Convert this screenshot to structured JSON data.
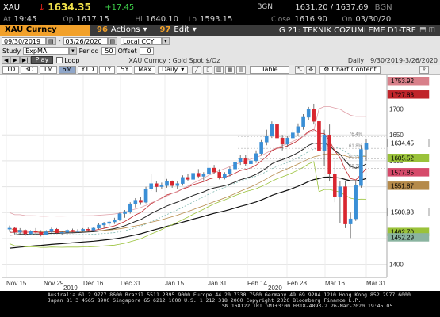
{
  "quote": {
    "symbol": "XAU",
    "arrow": "↓",
    "last": "1634.35",
    "change": "+17.45",
    "source": "BGN",
    "bid_ask": "1631.20 / 1637.69",
    "bid_ask_size": "BGN",
    "at_label": "At",
    "time": "19:45",
    "op_label": "Op",
    "open": "1617.15",
    "hi_label": "Hi",
    "high": "1640.10",
    "lo_label": "Lo",
    "low": "1593.15",
    "close_label": "Close",
    "close": "1616.90",
    "on_label": "On",
    "close_date": "03/30/20"
  },
  "menu": {
    "security": "XAU Curncy",
    "actions_num": "96",
    "actions_label": "Actions",
    "edit_num": "97",
    "edit_label": "Edit",
    "title": "G 21: TEKNIK COZUMLEME D1-TRE"
  },
  "toolbar1": {
    "start_date": "09/30/2019",
    "end_date": "03/26/2020",
    "currency": "Local CCY"
  },
  "toolbar2": {
    "study_label": "Study",
    "study_value": "ExpMA",
    "period_label": "Period",
    "period_value": "50",
    "offset_label": "Offset",
    "offset_value": "0"
  },
  "toolbar3": {
    "play_label": "Play",
    "loop_label": "Loop",
    "desc": "XAU Curncy : Gold Spot   $/Oz",
    "freq": "Daily",
    "range": "9/30/2019-3/26/2020"
  },
  "toolbar4": {
    "ranges": [
      "1D",
      "3D",
      "1M",
      "6M",
      "YTD",
      "1Y",
      "5Y",
      "Max"
    ],
    "selected": "6M",
    "period": "Daily",
    "table_label": "Table",
    "chart_content_label": "Chart Content"
  },
  "chart_data": {
    "type": "candlestick",
    "x_ticks": [
      "Nov 15",
      "Nov 29",
      "Dec 16",
      "Dec 31",
      "Jan 15",
      "Jan 31",
      "Feb 14",
      "Feb 28",
      "Mar 16",
      "Mar 31"
    ],
    "x_years": [
      "2019",
      "2020"
    ],
    "y_ticks": [
      1400,
      1450,
      1500,
      1550,
      1600,
      1650,
      1700
    ],
    "ylim": [
      1375,
      1765
    ],
    "price_labels": [
      {
        "value": 1753.92,
        "color": "#d8808a"
      },
      {
        "value": 1727.83,
        "color": "#c0242a"
      },
      {
        "value": 1634.45,
        "color": "#ffffff"
      },
      {
        "value": 1605.52,
        "color": "#9ac23a"
      },
      {
        "value": 1577.85,
        "color": "#d64a6a"
      },
      {
        "value": 1551.87,
        "color": "#b58a4a"
      },
      {
        "value": 1500.98,
        "color": "#ffffff"
      },
      {
        "value": 1462.7,
        "color": "#9ac23a"
      },
      {
        "value": 1452.29,
        "color": "#8ab4a0"
      }
    ],
    "fib_labels": [
      "76.4%",
      "61.8%",
      "50.0%",
      "38.2%"
    ],
    "candles": [
      [
        1468,
        1475,
        1463,
        1470
      ],
      [
        1470,
        1472,
        1458,
        1462
      ],
      [
        1462,
        1470,
        1458,
        1466
      ],
      [
        1466,
        1468,
        1455,
        1459
      ],
      [
        1459,
        1466,
        1456,
        1464
      ],
      [
        1464,
        1470,
        1460,
        1462
      ],
      [
        1462,
        1466,
        1454,
        1458
      ],
      [
        1458,
        1466,
        1457,
        1463
      ],
      [
        1463,
        1471,
        1461,
        1468
      ],
      [
        1468,
        1470,
        1459,
        1461
      ],
      [
        1461,
        1465,
        1456,
        1462
      ],
      [
        1462,
        1468,
        1458,
        1466
      ],
      [
        1466,
        1469,
        1460,
        1463
      ],
      [
        1463,
        1468,
        1461,
        1465
      ],
      [
        1465,
        1470,
        1462,
        1468
      ],
      [
        1468,
        1471,
        1463,
        1466
      ],
      [
        1466,
        1472,
        1464,
        1470
      ],
      [
        1470,
        1480,
        1468,
        1476
      ],
      [
        1476,
        1482,
        1470,
        1479
      ],
      [
        1479,
        1484,
        1474,
        1482
      ],
      [
        1482,
        1490,
        1478,
        1486
      ],
      [
        1486,
        1500,
        1484,
        1498
      ],
      [
        1498,
        1505,
        1490,
        1502
      ],
      [
        1502,
        1520,
        1498,
        1517
      ],
      [
        1517,
        1528,
        1510,
        1524
      ],
      [
        1524,
        1530,
        1515,
        1520
      ],
      [
        1520,
        1550,
        1518,
        1546
      ],
      [
        1546,
        1575,
        1542,
        1556
      ],
      [
        1556,
        1560,
        1540,
        1550
      ],
      [
        1550,
        1558,
        1545,
        1552
      ],
      [
        1552,
        1565,
        1548,
        1560
      ],
      [
        1560,
        1562,
        1548,
        1552
      ],
      [
        1552,
        1560,
        1546,
        1556
      ],
      [
        1556,
        1572,
        1552,
        1568
      ],
      [
        1568,
        1575,
        1560,
        1564
      ],
      [
        1564,
        1580,
        1560,
        1576
      ],
      [
        1576,
        1584,
        1566,
        1570
      ],
      [
        1570,
        1578,
        1562,
        1574
      ],
      [
        1574,
        1590,
        1570,
        1586
      ],
      [
        1586,
        1592,
        1574,
        1578
      ],
      [
        1578,
        1584,
        1564,
        1568
      ],
      [
        1568,
        1578,
        1564,
        1574
      ],
      [
        1574,
        1588,
        1570,
        1584
      ],
      [
        1584,
        1602,
        1580,
        1598
      ],
      [
        1598,
        1612,
        1592,
        1604
      ],
      [
        1604,
        1612,
        1590,
        1594
      ],
      [
        1594,
        1604,
        1588,
        1600
      ],
      [
        1600,
        1620,
        1596,
        1614
      ],
      [
        1614,
        1640,
        1610,
        1636
      ],
      [
        1636,
        1660,
        1630,
        1648
      ],
      [
        1648,
        1676,
        1644,
        1670
      ],
      [
        1670,
        1680,
        1640,
        1644
      ],
      [
        1644,
        1650,
        1620,
        1632
      ],
      [
        1632,
        1648,
        1626,
        1644
      ],
      [
        1644,
        1660,
        1640,
        1654
      ],
      [
        1654,
        1672,
        1648,
        1666
      ],
      [
        1666,
        1690,
        1660,
        1684
      ],
      [
        1684,
        1704,
        1678,
        1700
      ],
      [
        1700,
        1710,
        1670,
        1676
      ],
      [
        1676,
        1684,
        1610,
        1620
      ],
      [
        1620,
        1660,
        1590,
        1650
      ],
      [
        1650,
        1670,
        1560,
        1575
      ],
      [
        1575,
        1600,
        1520,
        1530
      ],
      [
        1530,
        1560,
        1480,
        1550
      ],
      [
        1550,
        1560,
        1470,
        1478
      ],
      [
        1478,
        1500,
        1451,
        1488
      ],
      [
        1488,
        1560,
        1484,
        1552
      ],
      [
        1552,
        1630,
        1548,
        1622
      ],
      [
        1622,
        1642,
        1600,
        1634
      ]
    ]
  }
}
